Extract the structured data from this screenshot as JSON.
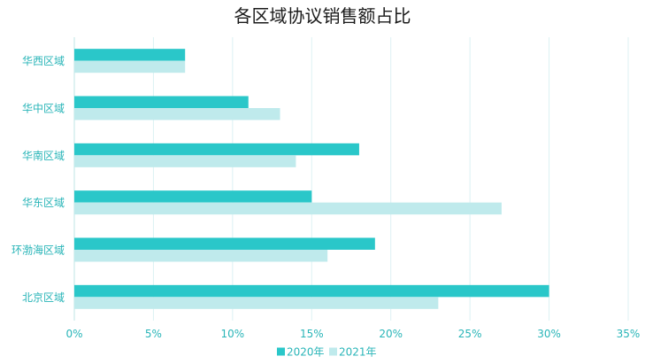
{
  "chart_data": {
    "type": "bar",
    "orientation": "horizontal",
    "title": "各区域协议销售额占比",
    "categories": [
      "华西区域",
      "华中区域",
      "华南区域",
      "华东区域",
      "环渤海区域",
      "北京区域"
    ],
    "series": [
      {
        "name": "2020年",
        "values": [
          7,
          11,
          18,
          15,
          19,
          30
        ]
      },
      {
        "name": "2021年",
        "values": [
          7,
          13,
          14,
          27,
          16,
          23
        ]
      }
    ],
    "xlim": [
      0,
      35
    ],
    "x_ticks": [
      0,
      5,
      10,
      15,
      20,
      25,
      30,
      35
    ],
    "x_tick_labels": [
      "0%",
      "5%",
      "10%",
      "15%",
      "20%",
      "25%",
      "30%",
      "35%"
    ],
    "grid": true,
    "legend_position": "bottom",
    "colors": {
      "series_1": "#2ac7c9",
      "series_2": "#bfeaec",
      "tick_text": "#29b5b8",
      "grid": "#dcf2f3",
      "axis": "#bfe4e6"
    }
  }
}
